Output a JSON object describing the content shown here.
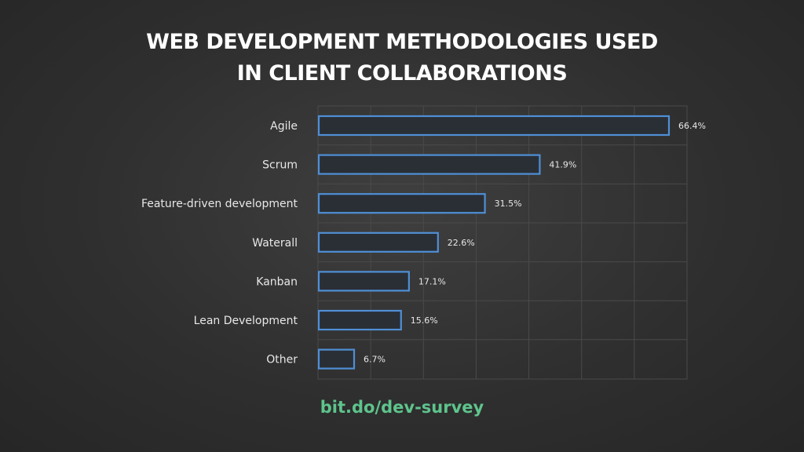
{
  "title_line1": "WEB DEVELOPMENT METHODOLOGIES USED",
  "title_line2": "IN CLIENT COLLABORATIONS",
  "footer": "bit.do/dev-survey",
  "colors": {
    "bar_stroke": "#4f8fd6",
    "bar_fill": "#2a2f36",
    "label_text": "#e8e8e8",
    "value_text": "#e8e8e8",
    "grid": "#4a4a4a",
    "footer": "#5ec48c"
  },
  "chart_data": {
    "type": "bar",
    "orientation": "horizontal",
    "categories": [
      "Agile",
      "Scrum",
      "Feature-driven development",
      "Waterall",
      "Kanban",
      "Lean Development",
      "Other"
    ],
    "values": [
      66.4,
      41.9,
      31.5,
      22.6,
      17.1,
      15.6,
      6.7
    ],
    "value_labels": [
      "66.4%",
      "41.9%",
      "31.5%",
      "22.6%",
      "17.1%",
      "15.6%",
      "6.7%"
    ],
    "xlim": [
      0,
      70
    ],
    "grid": true
  }
}
